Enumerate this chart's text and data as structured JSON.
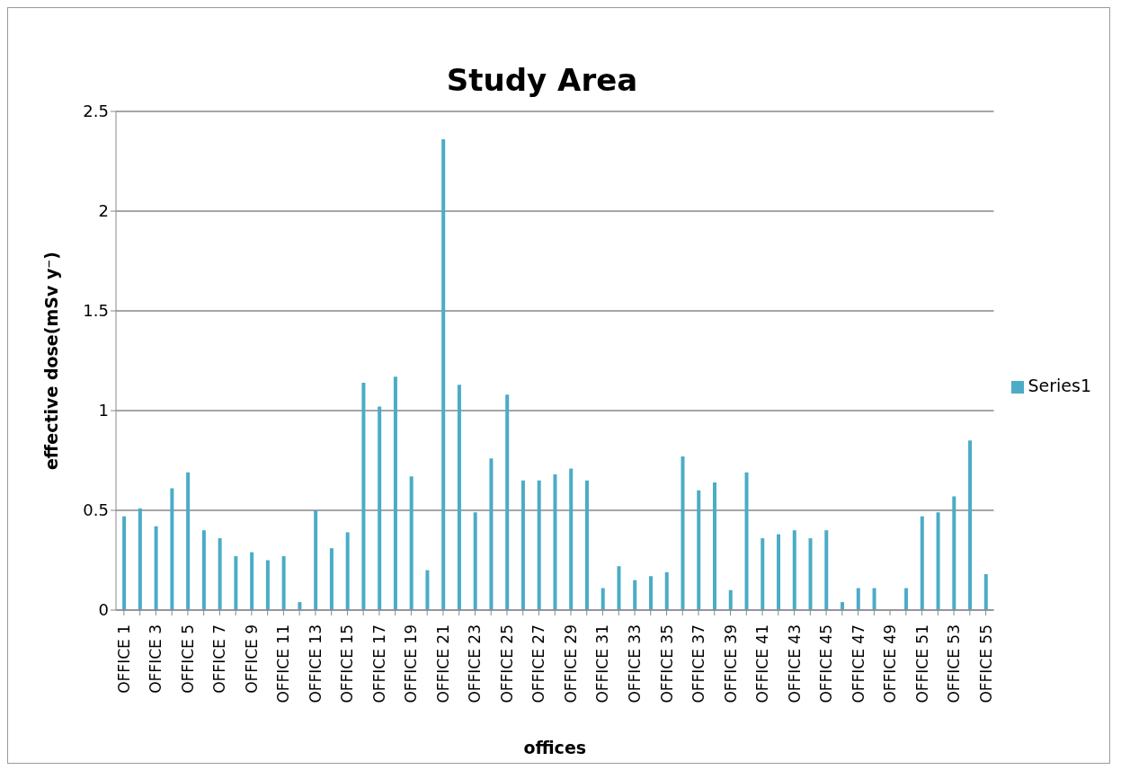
{
  "chart_data": {
    "type": "bar",
    "title": "Study Area",
    "xlabel": "offices",
    "ylabel": "effective dose(mSv y⁻)",
    "categories": [
      "OFFICE 1",
      null,
      "OFFICE 3",
      null,
      "OFFICE 5",
      null,
      "OFFICE 7",
      null,
      "OFFICE 9",
      null,
      "OFFICE 11",
      null,
      "OFFICE 13",
      null,
      "OFFICE 15",
      null,
      "OFFICE 17",
      null,
      "OFFICE 19",
      null,
      "OFFICE 21",
      null,
      "OFFICE 23",
      null,
      "OFFICE 25",
      null,
      "OFFICE 27",
      null,
      "OFFICE 29",
      null,
      "OFFICE 31",
      null,
      "OFFICE 33",
      null,
      "OFFICE 35",
      null,
      "OFFICE 37",
      null,
      "OFFICE 39",
      null,
      "OFFICE 41",
      null,
      "OFFICE 43",
      null,
      "OFFICE 45",
      null,
      "OFFICE 47",
      null,
      "OFFICE 49",
      null,
      "OFFICE 51",
      null,
      "OFFICE 53",
      null,
      "OFFICE 55"
    ],
    "series": [
      {
        "name": "Series1",
        "color": "#4bacc6",
        "values": [
          0.47,
          0.51,
          0.42,
          0.61,
          0.69,
          0.4,
          0.36,
          0.27,
          0.29,
          0.25,
          0.27,
          0.04,
          0.5,
          0.31,
          0.39,
          1.14,
          1.02,
          1.17,
          0.67,
          0.2,
          2.36,
          1.13,
          0.49,
          0.76,
          1.08,
          0.65,
          0.65,
          0.68,
          0.71,
          0.65,
          0.11,
          0.22,
          0.15,
          0.17,
          0.19,
          0.77,
          0.6,
          0.64,
          0.1,
          0.69,
          0.36,
          0.38,
          0.4,
          0.36,
          0.4,
          0.04,
          0.11,
          0.11,
          0,
          0.11,
          0.47,
          0.49,
          0.57,
          0.85,
          0.18
        ]
      }
    ],
    "ylim": [
      0,
      2.5
    ],
    "yticks": [
      0,
      0.5,
      1,
      1.5,
      2,
      2.5
    ],
    "grid": "y",
    "legend": "right"
  }
}
